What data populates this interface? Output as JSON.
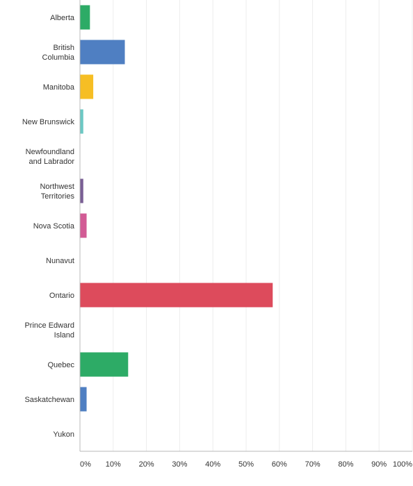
{
  "chart_data": {
    "type": "bar",
    "orientation": "horizontal",
    "title": "",
    "xlabel": "",
    "ylabel": "",
    "xlim": [
      0,
      100
    ],
    "x_ticks": [
      "0%",
      "10%",
      "20%",
      "30%",
      "40%",
      "50%",
      "60%",
      "70%",
      "80%",
      "90%",
      "100%"
    ],
    "grid": "vertical",
    "categories": [
      [
        "Alberta"
      ],
      [
        "British",
        "Columbia"
      ],
      [
        "Manitoba"
      ],
      [
        "New Brunswick"
      ],
      [
        "Newfoundland",
        "and Labrador"
      ],
      [
        "Northwest",
        "Territories"
      ],
      [
        "Nova Scotia"
      ],
      [
        "Nunavut"
      ],
      [
        "Ontario"
      ],
      [
        "Prince Edward",
        "Island"
      ],
      [
        "Quebec"
      ],
      [
        "Saskatchewan"
      ],
      [
        "Yukon"
      ]
    ],
    "values": [
      3.0,
      13.5,
      4.0,
      1.0,
      0,
      1.0,
      2.0,
      0,
      58.0,
      0,
      14.5,
      2.0,
      0
    ],
    "colors": [
      "#2dab66",
      "#4f7fc2",
      "#f6be24",
      "#6cc8c4",
      "#9a6bb2",
      "#7a5f95",
      "#d25b95",
      "#e3894a",
      "#dd4b5c",
      "#88b04b",
      "#2dab66",
      "#4f7fc2",
      "#f6be24"
    ]
  }
}
